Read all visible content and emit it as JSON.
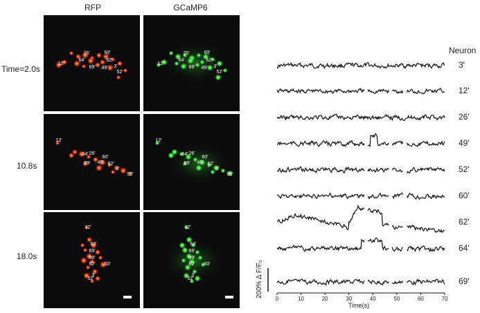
{
  "columns": [
    "RFP",
    "GCaMP6"
  ],
  "rows": [
    {
      "time": "Time=2.0s"
    },
    {
      "time": "10.8s"
    },
    {
      "time": "18.0s"
    }
  ],
  "panel_cells": [
    [
      "26'",
      "60'",
      "64'",
      "62'",
      "12'",
      "69'",
      "49'",
      "3'",
      "52'"
    ],
    [
      "12'",
      "64'",
      "26'",
      "60'",
      "69'",
      "49'",
      "62'",
      "3'",
      "52'"
    ],
    [
      "12'",
      "64'",
      "69'",
      "49'",
      "62'",
      "60'",
      "3'",
      "52'"
    ]
  ],
  "traces": {
    "header": "Neuron",
    "neurons": [
      "3'",
      "12'",
      "26'",
      "49'",
      "52'",
      "60'",
      "62'",
      "64'",
      "69'"
    ],
    "x_ticks": [
      "0",
      "10",
      "20",
      "30",
      "40",
      "50",
      "60",
      "70"
    ],
    "x_label": "Time(s)",
    "scale_label": "200% Δ F/F₀"
  },
  "colors": {
    "rfp": "#ff3a10",
    "gcamp": "#33e033",
    "panel_bg": "#0b0b0b"
  }
}
